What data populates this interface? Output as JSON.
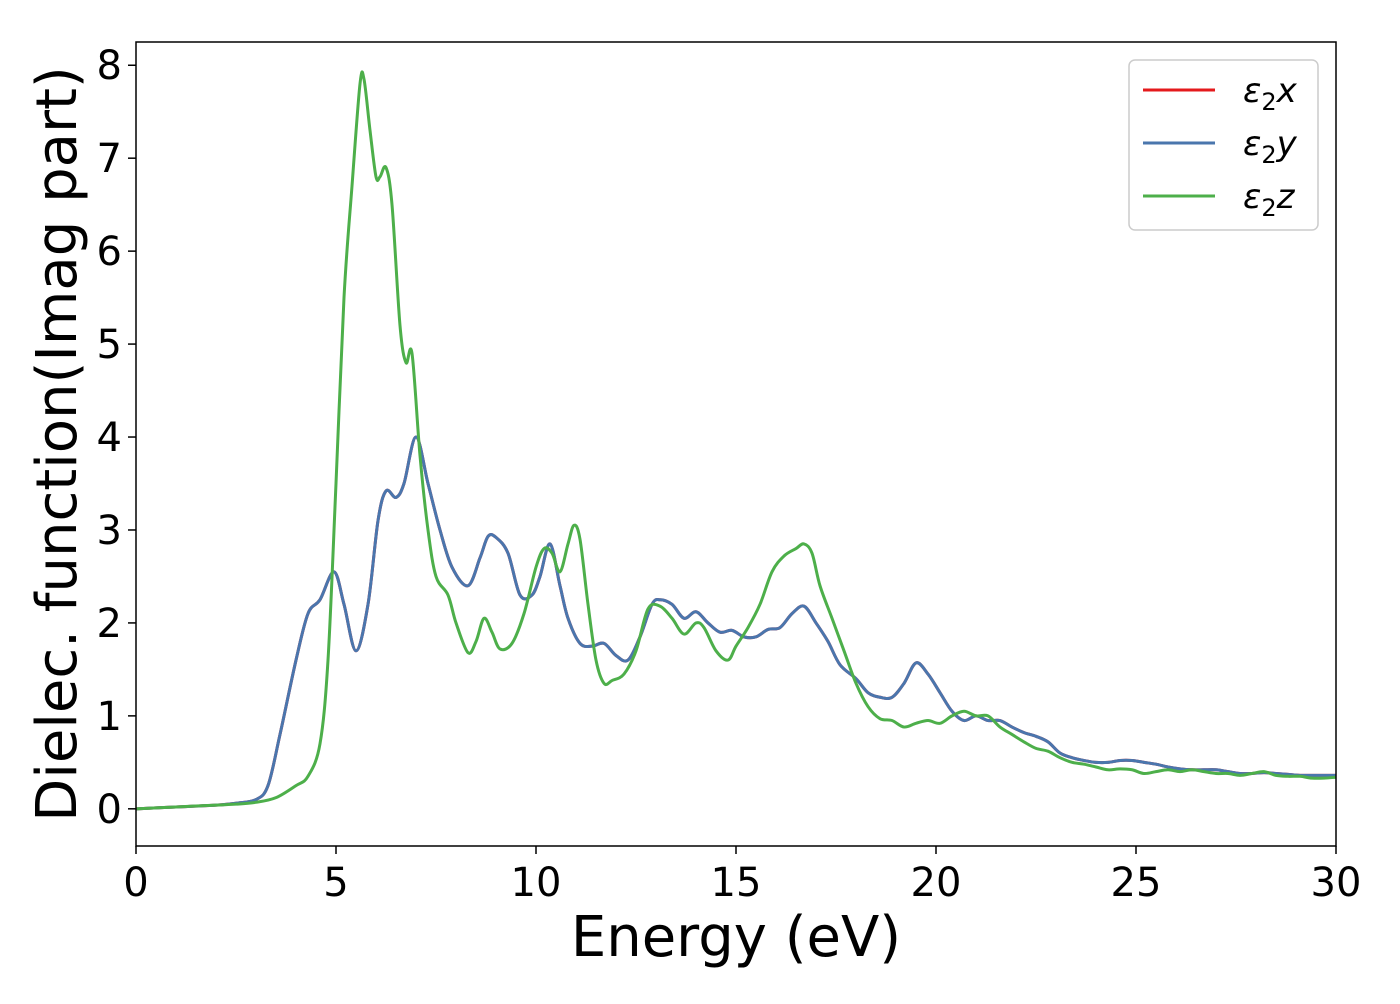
{
  "chart_data": {
    "type": "line",
    "title": "",
    "xlabel": "Energy (eV)",
    "ylabel": "Dielec. function(Imag part)",
    "xlim": [
      0,
      30
    ],
    "ylim": [
      -0.4,
      8.25
    ],
    "xticks": [
      0,
      5,
      10,
      15,
      20,
      25,
      30
    ],
    "yticks": [
      0,
      1,
      2,
      3,
      4,
      5,
      6,
      7,
      8
    ],
    "grid": false,
    "legend_position": "top-right",
    "series": [
      {
        "name": "ε₂x",
        "legend_main": "ε",
        "legend_sub": "2",
        "legend_axis": "x",
        "color": "#e41a1c",
        "x": [
          0,
          1,
          2,
          2.5,
          3,
          3.3,
          3.6,
          4.0,
          4.3,
          4.6,
          4.95,
          5.2,
          5.5,
          5.8,
          6.05,
          6.25,
          6.5,
          6.7,
          7.0,
          7.3,
          7.6,
          7.9,
          8.3,
          8.6,
          8.8,
          9.0,
          9.3,
          9.6,
          9.9,
          10.1,
          10.35,
          10.6,
          10.8,
          11.1,
          11.4,
          11.7,
          12.0,
          12.3,
          12.6,
          12.9,
          13.1,
          13.4,
          13.7,
          14.0,
          14.3,
          14.6,
          14.9,
          15.2,
          15.5,
          15.8,
          16.1,
          16.4,
          16.7,
          17.0,
          17.3,
          17.6,
          18.0,
          18.3,
          18.6,
          18.9,
          19.2,
          19.5,
          19.8,
          20.1,
          20.4,
          20.7,
          21.0,
          21.3,
          21.6,
          21.9,
          22.2,
          22.5,
          22.8,
          23.1,
          23.4,
          23.7,
          24.0,
          24.3,
          24.6,
          24.9,
          25.2,
          25.5,
          25.8,
          26.1,
          26.4,
          26.7,
          27.0,
          27.3,
          27.6,
          27.9,
          28.2,
          28.5,
          28.8,
          29.1,
          29.4,
          29.7,
          30.0
        ],
        "values": [
          0,
          0.02,
          0.04,
          0.06,
          0.1,
          0.25,
          0.8,
          1.6,
          2.1,
          2.25,
          2.55,
          2.2,
          1.7,
          2.2,
          3.1,
          3.42,
          3.35,
          3.5,
          4.0,
          3.5,
          3.0,
          2.6,
          2.4,
          2.7,
          2.93,
          2.92,
          2.75,
          2.3,
          2.3,
          2.5,
          2.85,
          2.4,
          2.05,
          1.78,
          1.75,
          1.78,
          1.65,
          1.6,
          1.85,
          2.2,
          2.25,
          2.2,
          2.05,
          2.12,
          2.0,
          1.9,
          1.92,
          1.85,
          1.85,
          1.93,
          1.95,
          2.1,
          2.18,
          2.0,
          1.8,
          1.55,
          1.4,
          1.25,
          1.2,
          1.2,
          1.35,
          1.57,
          1.45,
          1.25,
          1.05,
          0.95,
          1.0,
          0.95,
          0.95,
          0.88,
          0.82,
          0.78,
          0.72,
          0.6,
          0.55,
          0.52,
          0.5,
          0.5,
          0.52,
          0.52,
          0.5,
          0.48,
          0.45,
          0.43,
          0.42,
          0.42,
          0.42,
          0.4,
          0.38,
          0.38,
          0.39,
          0.38,
          0.37,
          0.36,
          0.36,
          0.36,
          0.36
        ]
      },
      {
        "name": "ε₂y",
        "legend_main": "ε",
        "legend_sub": "2",
        "legend_axis": "y",
        "color": "#4a76ad",
        "x": [
          0,
          1,
          2,
          2.5,
          3,
          3.3,
          3.6,
          4.0,
          4.3,
          4.6,
          4.95,
          5.2,
          5.5,
          5.8,
          6.05,
          6.25,
          6.5,
          6.7,
          7.0,
          7.3,
          7.6,
          7.9,
          8.3,
          8.6,
          8.8,
          9.0,
          9.3,
          9.6,
          9.9,
          10.1,
          10.35,
          10.6,
          10.8,
          11.1,
          11.4,
          11.7,
          12.0,
          12.3,
          12.6,
          12.9,
          13.1,
          13.4,
          13.7,
          14.0,
          14.3,
          14.6,
          14.9,
          15.2,
          15.5,
          15.8,
          16.1,
          16.4,
          16.7,
          17.0,
          17.3,
          17.6,
          18.0,
          18.3,
          18.6,
          18.9,
          19.2,
          19.5,
          19.8,
          20.1,
          20.4,
          20.7,
          21.0,
          21.3,
          21.6,
          21.9,
          22.2,
          22.5,
          22.8,
          23.1,
          23.4,
          23.7,
          24.0,
          24.3,
          24.6,
          24.9,
          25.2,
          25.5,
          25.8,
          26.1,
          26.4,
          26.7,
          27.0,
          27.3,
          27.6,
          27.9,
          28.2,
          28.5,
          28.8,
          29.1,
          29.4,
          29.7,
          30.0
        ],
        "values": [
          0,
          0.02,
          0.04,
          0.06,
          0.1,
          0.25,
          0.8,
          1.6,
          2.1,
          2.25,
          2.55,
          2.2,
          1.7,
          2.2,
          3.1,
          3.42,
          3.35,
          3.5,
          4.0,
          3.5,
          3.0,
          2.6,
          2.4,
          2.7,
          2.93,
          2.92,
          2.75,
          2.3,
          2.3,
          2.5,
          2.85,
          2.4,
          2.05,
          1.78,
          1.75,
          1.78,
          1.65,
          1.6,
          1.85,
          2.2,
          2.25,
          2.2,
          2.05,
          2.12,
          2.0,
          1.9,
          1.92,
          1.85,
          1.85,
          1.93,
          1.95,
          2.1,
          2.18,
          2.0,
          1.8,
          1.55,
          1.4,
          1.25,
          1.2,
          1.2,
          1.35,
          1.57,
          1.45,
          1.25,
          1.05,
          0.95,
          1.0,
          0.95,
          0.95,
          0.88,
          0.82,
          0.78,
          0.72,
          0.6,
          0.55,
          0.52,
          0.5,
          0.5,
          0.52,
          0.52,
          0.5,
          0.48,
          0.45,
          0.43,
          0.42,
          0.42,
          0.42,
          0.4,
          0.38,
          0.38,
          0.39,
          0.38,
          0.37,
          0.36,
          0.36,
          0.36,
          0.36
        ]
      },
      {
        "name": "ε₂z",
        "legend_main": "ε",
        "legend_sub": "2",
        "legend_axis": "z",
        "color": "#4daf4a",
        "x": [
          0,
          1,
          2,
          2.5,
          3,
          3.5,
          4.0,
          4.3,
          4.6,
          4.8,
          5.0,
          5.2,
          5.4,
          5.6,
          5.7,
          5.85,
          6.0,
          6.1,
          6.25,
          6.4,
          6.6,
          6.75,
          6.9,
          7.1,
          7.3,
          7.5,
          7.8,
          8.0,
          8.3,
          8.5,
          8.7,
          8.9,
          9.1,
          9.4,
          9.7,
          10.0,
          10.2,
          10.4,
          10.6,
          10.8,
          10.95,
          11.1,
          11.3,
          11.5,
          11.7,
          11.9,
          12.2,
          12.5,
          12.8,
          13.1,
          13.4,
          13.7,
          14.0,
          14.2,
          14.5,
          14.8,
          15.0,
          15.3,
          15.6,
          15.9,
          16.2,
          16.5,
          16.7,
          16.9,
          17.1,
          17.4,
          17.7,
          18.0,
          18.3,
          18.6,
          18.9,
          19.2,
          19.5,
          19.8,
          20.1,
          20.4,
          20.7,
          21.0,
          21.3,
          21.6,
          21.9,
          22.2,
          22.5,
          22.8,
          23.1,
          23.4,
          23.7,
          24.0,
          24.3,
          24.6,
          24.9,
          25.2,
          25.5,
          25.8,
          26.1,
          26.4,
          26.7,
          27.0,
          27.3,
          27.6,
          27.9,
          28.2,
          28.5,
          28.8,
          29.1,
          29.4,
          29.7,
          30.0
        ],
        "values": [
          0,
          0.02,
          0.04,
          0.05,
          0.07,
          0.12,
          0.25,
          0.35,
          0.7,
          1.6,
          3.5,
          5.5,
          6.7,
          7.8,
          7.85,
          7.3,
          6.8,
          6.8,
          6.9,
          6.5,
          5.2,
          4.8,
          4.9,
          3.8,
          3.0,
          2.5,
          2.3,
          2.0,
          1.68,
          1.8,
          2.05,
          1.9,
          1.72,
          1.78,
          2.1,
          2.6,
          2.8,
          2.75,
          2.55,
          2.85,
          3.05,
          2.9,
          2.2,
          1.6,
          1.35,
          1.38,
          1.45,
          1.7,
          2.15,
          2.18,
          2.05,
          1.88,
          2.0,
          1.95,
          1.7,
          1.6,
          1.75,
          1.95,
          2.2,
          2.55,
          2.72,
          2.8,
          2.85,
          2.75,
          2.4,
          2.05,
          1.7,
          1.35,
          1.1,
          0.97,
          0.95,
          0.88,
          0.92,
          0.95,
          0.92,
          1.0,
          1.05,
          1.0,
          1.0,
          0.88,
          0.8,
          0.72,
          0.65,
          0.62,
          0.55,
          0.5,
          0.48,
          0.45,
          0.42,
          0.43,
          0.42,
          0.38,
          0.4,
          0.42,
          0.4,
          0.42,
          0.4,
          0.38,
          0.38,
          0.36,
          0.38,
          0.4,
          0.36,
          0.35,
          0.35,
          0.33,
          0.33,
          0.34
        ]
      }
    ]
  }
}
